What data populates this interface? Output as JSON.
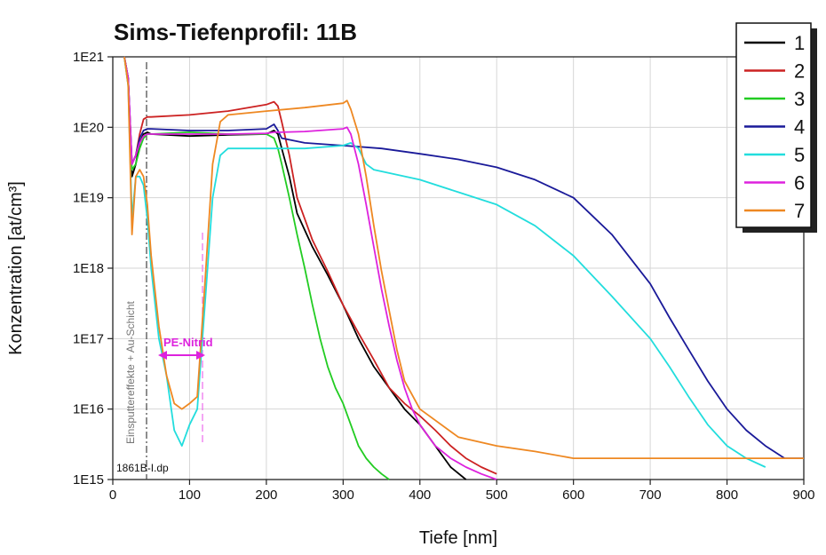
{
  "chart_data": {
    "type": "line",
    "title": "Sims-Tiefenprofil: 11B",
    "xlabel": "Tiefe [nm]",
    "ylabel": "Konzentration [at/cm³]",
    "xlim": [
      0,
      900
    ],
    "ylim": [
      1000000000000000.0,
      1e+21
    ],
    "yscale": "log",
    "x_ticks": [
      "0",
      "100",
      "200",
      "300",
      "400",
      "500",
      "600",
      "700",
      "800",
      "900"
    ],
    "y_ticks": [
      "1E15",
      "1E16",
      "1E17",
      "1E18",
      "1E19",
      "1E20",
      "1E21"
    ],
    "grid": true,
    "legend_position": "top-right",
    "annotations": {
      "vertical_text": "Einsputtereffekte + Au-Schicht",
      "file_label": "1861B-I.dp",
      "region_label": "PE-Nitrid"
    },
    "series": [
      {
        "name": "1",
        "color": "#000000",
        "x": [
          15,
          20,
          25,
          30,
          35,
          40,
          45,
          50,
          100,
          150,
          200,
          210,
          215,
          220,
          230,
          240,
          260,
          280,
          300,
          320,
          340,
          360,
          380,
          400,
          420,
          440,
          460
        ],
        "y": [
          1e+21,
          5e+20,
          2e+19,
          3e+19,
          6e+19,
          8e+19,
          8.5e+19,
          8e+19,
          7.5e+19,
          7.8e+19,
          8e+19,
          9e+19,
          8e+19,
          5e+19,
          2e+19,
          6e+18,
          2e+18,
          8e+17,
          3e+17,
          1e+17,
          4e+16,
          2e+16,
          1e+16,
          6000000000000000.0,
          3000000000000000.0,
          1500000000000000.0,
          1000000000000000.0
        ]
      },
      {
        "name": "2",
        "color": "#cc2222",
        "x": [
          15,
          20,
          25,
          30,
          35,
          40,
          45,
          50,
          100,
          150,
          200,
          210,
          215,
          220,
          230,
          240,
          260,
          280,
          300,
          320,
          340,
          360,
          380,
          400,
          420,
          440,
          460,
          480,
          500
        ],
        "y": [
          1e+21,
          5e+20,
          3e+19,
          4e+19,
          8e+19,
          1.3e+20,
          1.4e+20,
          1.4e+20,
          1.5e+20,
          1.7e+20,
          2.1e+20,
          2.3e+20,
          2e+20,
          1.2e+20,
          4e+19,
          1e+19,
          2.5e+18,
          9e+17,
          3e+17,
          1.2e+17,
          5e+16,
          2e+16,
          1.2e+16,
          8000000000000000.0,
          5000000000000000.0,
          3000000000000000.0,
          2000000000000000.0,
          1500000000000000.0,
          1200000000000000.0
        ]
      },
      {
        "name": "3",
        "color": "#22cc22",
        "x": [
          15,
          20,
          25,
          30,
          35,
          40,
          45,
          50,
          100,
          150,
          200,
          210,
          215,
          220,
          230,
          240,
          250,
          260,
          270,
          280,
          290,
          300,
          310,
          320,
          330,
          340,
          350,
          360
        ],
        "y": [
          1e+21,
          4e+20,
          2.5e+19,
          3e+19,
          5e+19,
          7e+19,
          8e+19,
          8e+19,
          8.5e+19,
          8e+19,
          8e+19,
          7e+19,
          5e+19,
          3e+19,
          1e+19,
          3e+18,
          1e+18,
          3e+17,
          1e+17,
          4e+16,
          2e+16,
          1.2e+16,
          6000000000000000.0,
          3000000000000000.0,
          2000000000000000.0,
          1500000000000000.0,
          1200000000000000.0,
          1000000000000000.0
        ]
      },
      {
        "name": "4",
        "color": "#1a1a99",
        "x": [
          15,
          20,
          25,
          30,
          35,
          40,
          45,
          50,
          100,
          150,
          200,
          210,
          215,
          220,
          250,
          300,
          350,
          400,
          450,
          500,
          550,
          600,
          650,
          700,
          725,
          750,
          775,
          800,
          825,
          850,
          875,
          900
        ],
        "y": [
          1e+21,
          5e+20,
          3e+19,
          4e+19,
          7e+19,
          9e+19,
          9.5e+19,
          9.5e+19,
          9e+19,
          9e+19,
          9.5e+19,
          1.1e+20,
          9e+19,
          7e+19,
          6e+19,
          5.5e+19,
          5e+19,
          4.2e+19,
          3.5e+19,
          2.7e+19,
          1.8e+19,
          1e+19,
          3e+18,
          6e+17,
          2e+17,
          7e+16,
          2.5e+16,
          1e+16,
          5000000000000000.0,
          3000000000000000.0,
          2000000000000000.0,
          2000000000000000.0
        ]
      },
      {
        "name": "5",
        "color": "#22dddd",
        "x": [
          15,
          20,
          25,
          30,
          35,
          40,
          45,
          50,
          60,
          70,
          80,
          90,
          100,
          110,
          120,
          130,
          140,
          150,
          200,
          250,
          300,
          310,
          320,
          330,
          340,
          400,
          450,
          500,
          550,
          600,
          650,
          700,
          725,
          750,
          775,
          800,
          825,
          850
        ],
        "y": [
          1e+21,
          4e+20,
          5e+18,
          2e+19,
          2e+19,
          1.5e+19,
          5e+18,
          1e+18,
          1e+17,
          3e+16,
          5000000000000000.0,
          3000000000000000.0,
          6000000000000000.0,
          1e+16,
          3e+17,
          1e+19,
          4e+19,
          5e+19,
          5e+19,
          5e+19,
          5.5e+19,
          6e+19,
          5e+19,
          3e+19,
          2.5e+19,
          1.8e+19,
          1.2e+19,
          8e+18,
          4e+18,
          1.5e+18,
          4e+17,
          1e+17,
          4e+16,
          1.5e+16,
          6000000000000000.0,
          3000000000000000.0,
          2000000000000000.0,
          1500000000000000.0
        ]
      },
      {
        "name": "6",
        "color": "#dd22dd",
        "x": [
          15,
          20,
          25,
          30,
          35,
          40,
          45,
          50,
          100,
          150,
          200,
          210,
          220,
          250,
          300,
          305,
          310,
          320,
          330,
          340,
          350,
          360,
          370,
          380,
          390,
          400,
          420,
          440,
          460,
          480,
          500
        ],
        "y": [
          1e+21,
          5e+20,
          3e+19,
          4e+19,
          6e+19,
          7.5e+19,
          8e+19,
          8e+19,
          8e+19,
          8e+19,
          8.2e+19,
          8.5e+19,
          8.5e+19,
          8.7e+19,
          9.5e+19,
          1e+20,
          8e+19,
          3e+19,
          8e+18,
          2e+18,
          5e+17,
          1.5e+17,
          5e+16,
          2e+16,
          1e+16,
          6000000000000000.0,
          3000000000000000.0,
          2000000000000000.0,
          1500000000000000.0,
          1200000000000000.0,
          1000000000000000.0
        ]
      },
      {
        "name": "7",
        "color": "#ee8822",
        "x": [
          15,
          20,
          25,
          30,
          35,
          40,
          45,
          50,
          60,
          70,
          80,
          90,
          100,
          110,
          120,
          130,
          140,
          150,
          200,
          250,
          300,
          305,
          310,
          320,
          330,
          340,
          350,
          360,
          370,
          380,
          400,
          450,
          500,
          550,
          600,
          650,
          700,
          750,
          800,
          850,
          900
        ],
        "y": [
          1e+21,
          4e+20,
          3e+18,
          2e+19,
          2.5e+19,
          2e+19,
          8e+18,
          1.5e+18,
          1.5e+17,
          3e+16,
          1.2e+16,
          1e+16,
          1.2e+16,
          1.5e+16,
          6e+17,
          3e+19,
          1.2e+20,
          1.5e+20,
          1.7e+20,
          1.9e+20,
          2.2e+20,
          2.4e+20,
          1.8e+20,
          8e+19,
          2e+19,
          4e+18,
          9e+17,
          2.5e+17,
          7e+16,
          2.5e+16,
          1e+16,
          4000000000000000.0,
          3000000000000000.0,
          2500000000000000.0,
          2000000000000000.0,
          2000000000000000.0,
          2000000000000000.0,
          2000000000000000.0,
          2000000000000000.0,
          2000000000000000.0,
          2000000000000000.0
        ]
      }
    ]
  }
}
